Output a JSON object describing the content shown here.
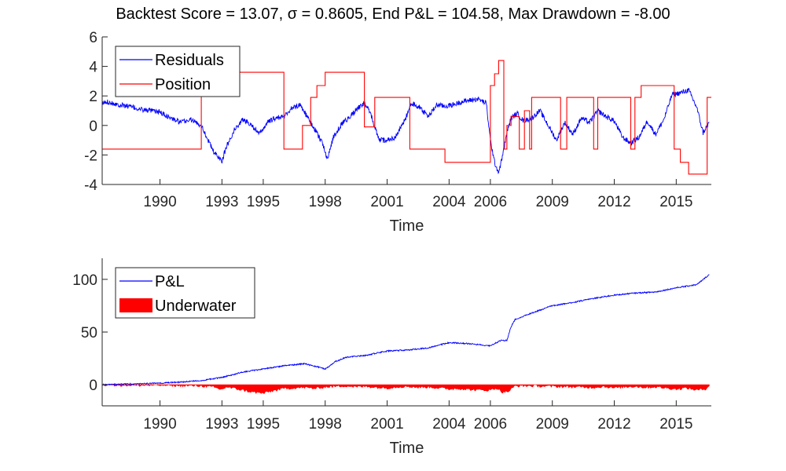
{
  "figure": {
    "title": "Backtest Score = 13.07, σ = 0.8605, End P&L = 104.58, Max Drawdown = -8.00"
  },
  "chart_data": [
    {
      "type": "line",
      "xlabel": "Time",
      "ylabel": "",
      "xlim": [
        1987.2,
        2016.7
      ],
      "ylim": [
        -4,
        6
      ],
      "yticks": [
        -4,
        -2,
        0,
        2,
        4,
        6
      ],
      "xticks": [
        1990,
        1993,
        1995,
        1998,
        2001,
        2004,
        2006,
        2009,
        2012,
        2015
      ],
      "grid": false,
      "legend_position": "top-left",
      "series": [
        {
          "name": "Residuals",
          "color": "#0000ff",
          "style": "line",
          "x": [
            1987.2,
            1987.5,
            1988.0,
            1988.5,
            1989.0,
            1989.5,
            1990.0,
            1990.5,
            1991.0,
            1991.5,
            1992.0,
            1992.2,
            1992.6,
            1993.0,
            1993.2,
            1993.6,
            1994.0,
            1994.4,
            1994.8,
            1995.2,
            1995.6,
            1996.0,
            1996.4,
            1996.8,
            1997.2,
            1997.6,
            1997.9,
            1998.1,
            1998.4,
            1998.8,
            1999.2,
            1999.6,
            1999.9,
            2000.2,
            2000.6,
            2001.0,
            2001.4,
            2001.8,
            2002.2,
            2002.6,
            2003.0,
            2003.4,
            2003.8,
            2004.2,
            2004.6,
            2005.0,
            2005.4,
            2005.8,
            2006.0,
            2006.2,
            2006.4,
            2006.6,
            2006.8,
            2007.0,
            2007.3,
            2007.6,
            2008.0,
            2008.4,
            2008.8,
            2009.2,
            2009.6,
            2010.0,
            2010.4,
            2010.8,
            2011.2,
            2011.6,
            2012.0,
            2012.4,
            2012.8,
            2013.2,
            2013.6,
            2014.0,
            2014.4,
            2014.8,
            2015.2,
            2015.6,
            2016.0,
            2016.3,
            2016.6
          ],
          "values": [
            1.5,
            1.6,
            1.4,
            1.3,
            1.1,
            1.0,
            0.9,
            0.5,
            0.2,
            0.4,
            0.0,
            -0.6,
            -1.8,
            -2.4,
            -1.5,
            -0.3,
            0.4,
            0.1,
            -0.6,
            0.2,
            0.5,
            0.6,
            1.2,
            1.4,
            0.4,
            -0.5,
            -1.3,
            -2.3,
            -0.8,
            0.1,
            0.6,
            1.2,
            1.5,
            0.8,
            -1.0,
            -1.0,
            -0.8,
            0.2,
            1.5,
            1.2,
            0.6,
            1.4,
            1.3,
            1.4,
            1.6,
            1.7,
            1.8,
            1.5,
            -1.0,
            -2.5,
            -3.2,
            -2.0,
            -0.5,
            0.5,
            0.8,
            0.3,
            0.5,
            1.0,
            0.0,
            -1.0,
            0.2,
            -0.6,
            0.5,
            0.2,
            1.0,
            0.6,
            0.3,
            -0.8,
            -1.2,
            -0.8,
            0.3,
            -0.6,
            0.4,
            2.1,
            2.2,
            2.4,
            1.2,
            -0.5,
            0.2
          ]
        },
        {
          "name": "Position",
          "color": "#ff0000",
          "style": "step",
          "x": [
            1987.2,
            1987.3,
            1992.0,
            1992.1,
            1996.0,
            1996.9,
            1997.3,
            1997.6,
            1998.0,
            1998.2,
            1999.9,
            2000.4,
            2002.1,
            2002.6,
            2003.8,
            2006.0,
            2006.2,
            2006.4,
            2006.65,
            2006.8,
            2007.0,
            2007.4,
            2007.65,
            2007.9,
            2008.0,
            2008.2,
            2008.4,
            2008.8,
            2009.4,
            2009.7,
            2010.2,
            2011.0,
            2011.2,
            2012.1,
            2012.8,
            2013.0,
            2013.3,
            2014.9,
            2015.2,
            2015.6,
            2016.5
          ],
          "values": [
            -1.6,
            -1.6,
            3.6,
            3.6,
            -1.6,
            0.0,
            1.9,
            2.7,
            3.6,
            3.6,
            -0.1,
            1.9,
            -1.6,
            -1.6,
            -2.5,
            2.7,
            3.5,
            4.4,
            -1.6,
            0.0,
            0.6,
            -1.6,
            1.0,
            -1.6,
            1.9,
            1.9,
            1.9,
            1.9,
            -1.6,
            1.9,
            1.9,
            -1.6,
            1.9,
            1.9,
            -1.6,
            1.9,
            2.7,
            -1.6,
            -2.5,
            -3.3,
            1.9
          ]
        }
      ]
    },
    {
      "type": "line",
      "xlabel": "Time",
      "ylabel": "",
      "xlim": [
        1987.2,
        2016.7
      ],
      "ylim": [
        -20,
        120
      ],
      "yticks": [
        0,
        50,
        100
      ],
      "xticks": [
        1990,
        1993,
        1995,
        1998,
        2001,
        2004,
        2006,
        2009,
        2012,
        2015
      ],
      "grid": false,
      "legend_position": "top-left",
      "series": [
        {
          "name": "P&L",
          "color": "#0000ff",
          "style": "line",
          "x": [
            1987.2,
            1988.0,
            1989.0,
            1990.0,
            1991.0,
            1992.0,
            1993.0,
            1994.0,
            1995.0,
            1996.0,
            1997.0,
            1998.0,
            1998.5,
            1999.0,
            2000.0,
            2001.0,
            2002.0,
            2003.0,
            2004.0,
            2005.0,
            2006.0,
            2006.5,
            2006.8,
            2007.0,
            2007.2,
            2008.0,
            2009.0,
            2010.0,
            2011.0,
            2012.0,
            2013.0,
            2014.0,
            2015.0,
            2016.0,
            2016.6
          ],
          "values": [
            0,
            0.5,
            1,
            1.5,
            2.5,
            4,
            7,
            12,
            15,
            18,
            20,
            15,
            22,
            26,
            28,
            32,
            33,
            35,
            40,
            39,
            37,
            42,
            42,
            55,
            62,
            68,
            75,
            78,
            82,
            85,
            87,
            88,
            92,
            95,
            104.58
          ]
        },
        {
          "name": "Underwater",
          "color": "#ff0000",
          "style": "area",
          "x": [
            1987.2,
            1988.0,
            1989.0,
            1990.0,
            1991.0,
            1992.0,
            1992.5,
            1993.0,
            1993.2,
            1993.6,
            1994.0,
            1994.5,
            1995.0,
            1995.4,
            1996.0,
            1996.5,
            1997.0,
            1997.5,
            1998.0,
            1998.5,
            1999.0,
            1999.5,
            2000.0,
            2000.5,
            2001.0,
            2001.5,
            2002.0,
            2002.5,
            2003.0,
            2003.5,
            2004.0,
            2004.5,
            2005.0,
            2005.5,
            2006.0,
            2006.3,
            2006.6,
            2006.9,
            2007.2,
            2008.0,
            2009.0,
            2010.0,
            2011.0,
            2011.5,
            2012.0,
            2012.5,
            2013.0,
            2013.5,
            2014.0,
            2014.5,
            2015.0,
            2015.5,
            2016.0,
            2016.4,
            2016.6
          ],
          "values": [
            0,
            -0.3,
            -0.5,
            -0.3,
            -0.8,
            -1.0,
            -2.0,
            -4.5,
            -2.0,
            -3.5,
            -5.0,
            -7.0,
            -8.0,
            -6.0,
            -3.5,
            -3.0,
            -2.5,
            -3.5,
            -2.0,
            -1.5,
            -1.0,
            -2.0,
            -1.5,
            -2.5,
            -3.0,
            -2.0,
            -1.5,
            -2.5,
            -2.0,
            -3.0,
            -4.0,
            -3.5,
            -4.5,
            -5.0,
            -5.0,
            -3.0,
            -7.0,
            -6.0,
            -1.0,
            -1.0,
            -1.5,
            -2.0,
            -2.5,
            -1.5,
            -3.0,
            -2.0,
            -1.5,
            -2.5,
            -2.0,
            -3.0,
            -4.0,
            -3.0,
            -5.0,
            -4.0,
            -1.0
          ]
        }
      ]
    }
  ]
}
